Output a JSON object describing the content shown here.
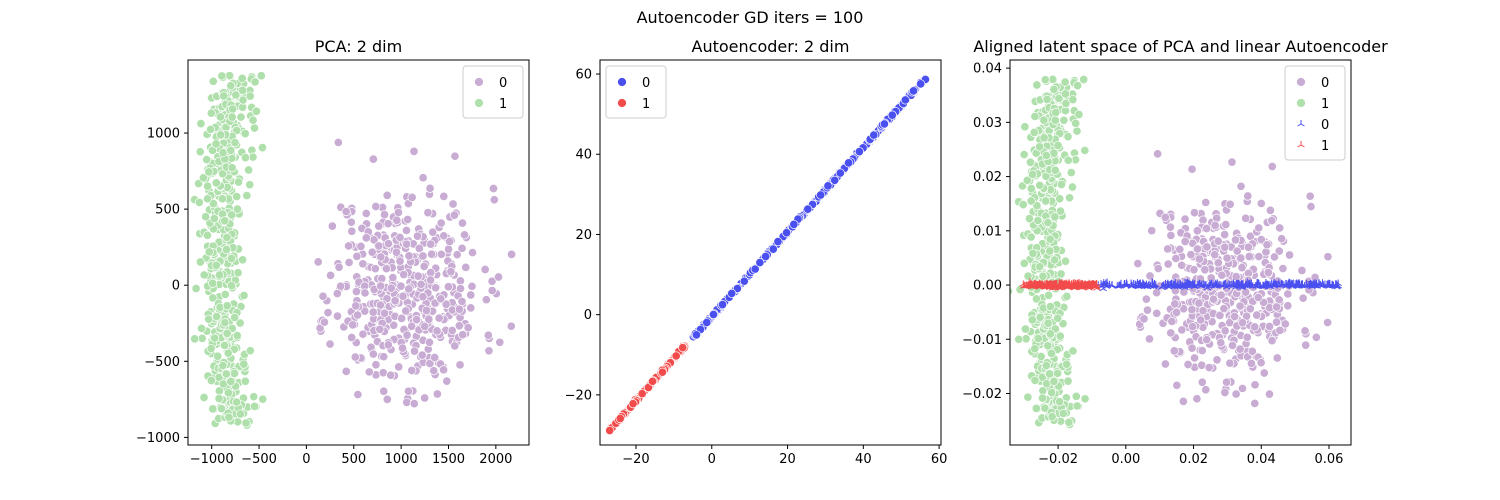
{
  "suptitle": "Autoencoder GD iters = 100",
  "colors": {
    "class0_pca": "#c9acd4",
    "class1_pca": "#afe0ac",
    "class0_ae": "#4a4ff0",
    "class1_ae": "#f24b4b"
  },
  "chart_data": [
    {
      "type": "scatter",
      "title": "PCA: 2 dim",
      "xlabel": "",
      "ylabel": "",
      "xlim": [
        -1250,
        2350
      ],
      "ylim": [
        -1050,
        1480
      ],
      "xticks": [
        -1000,
        -500,
        0,
        500,
        1000,
        1500,
        2000
      ],
      "yticks": [
        -1000,
        -500,
        0,
        500,
        1000
      ],
      "xtick_labels": [
        "−1000",
        "−500",
        "0",
        "500",
        "1000",
        "1500",
        "2000"
      ],
      "ytick_labels": [
        "−1000",
        "−500",
        "0",
        "500",
        "1000"
      ],
      "grid": false,
      "legend": {
        "placement": "top-right",
        "entries": [
          {
            "label": "0",
            "color": "#c9acd4",
            "marker": "circle"
          },
          {
            "label": "1",
            "color": "#afe0ac",
            "marker": "circle"
          }
        ]
      },
      "series": [
        {
          "name": "0",
          "color": "#c9acd4",
          "marker": "circle",
          "cloud": {
            "n": 480,
            "cx": 1050,
            "cy": -20,
            "sx": 400,
            "sy": 330,
            "xmin": 80,
            "xmax": 2280,
            "ymin": -780,
            "ymax": 1330,
            "seed": 11
          }
        },
        {
          "name": "1",
          "color": "#afe0ac",
          "marker": "circle",
          "shape": "crescent",
          "cloud": {
            "n": 520,
            "xcenter": -900,
            "xspread": 110,
            "ymin": -930,
            "ymax": 1380,
            "seed": 23
          }
        }
      ]
    },
    {
      "type": "scatter",
      "title": "Autoencoder: 2 dim",
      "xlabel": "",
      "ylabel": "",
      "xlim": [
        -29.5,
        60.5
      ],
      "ylim": [
        -32.5,
        63.5
      ],
      "xticks": [
        -20,
        0,
        20,
        40,
        60
      ],
      "yticks": [
        -20,
        0,
        20,
        40,
        60
      ],
      "xtick_labels": [
        "−20",
        "0",
        "20",
        "40",
        "60"
      ],
      "ytick_labels": [
        "−20",
        "0",
        "20",
        "40",
        "60"
      ],
      "grid": false,
      "legend": {
        "placement": "top-left",
        "entries": [
          {
            "label": "0",
            "color": "#4a4ff0",
            "marker": "circle"
          },
          {
            "label": "1",
            "color": "#f24b4b",
            "marker": "circle"
          }
        ]
      },
      "series": [
        {
          "name": "0",
          "color": "#4a4ff0",
          "marker": "circle",
          "line": {
            "x_from": -5,
            "x_to": 56.5,
            "slope": 1.0526,
            "intercept": -0.4,
            "n": 420,
            "seed": 5
          }
        },
        {
          "name": "1",
          "color": "#f24b4b",
          "marker": "circle",
          "line": {
            "x_from": -27,
            "x_to": -7,
            "slope": 1.0526,
            "intercept": -0.4,
            "n": 300,
            "seed": 7
          }
        }
      ]
    },
    {
      "type": "scatter",
      "title": "Aligned latent space of PCA and linear Autoencoder",
      "xlabel": "",
      "ylabel": "",
      "xlim": [
        -0.0342,
        0.0665
      ],
      "ylim": [
        -0.0295,
        0.0415
      ],
      "xticks": [
        -0.02,
        0.0,
        0.02,
        0.04,
        0.06
      ],
      "yticks": [
        -0.02,
        -0.01,
        0.0,
        0.01,
        0.02,
        0.03,
        0.04
      ],
      "xtick_labels": [
        "−0.02",
        "0.00",
        "0.02",
        "0.04",
        "0.06"
      ],
      "ytick_labels": [
        "−0.02",
        "−0.01",
        "0.00",
        "0.01",
        "0.02",
        "0.03",
        "0.04"
      ],
      "grid": false,
      "legend": {
        "placement": "top-right",
        "entries": [
          {
            "label": "0",
            "color": "#c9acd4",
            "marker": "circle"
          },
          {
            "label": "1",
            "color": "#afe0ac",
            "marker": "circle"
          },
          {
            "label": "0",
            "color": "#4a4ff0",
            "marker": "tri"
          },
          {
            "label": "1",
            "color": "#f24b4b",
            "marker": "tri"
          }
        ]
      },
      "series": [
        {
          "name": "0",
          "color": "#c9acd4",
          "marker": "circle",
          "cloud": {
            "n": 480,
            "cx": 0.029,
            "cy": -0.0005,
            "sx": 0.011,
            "sy": 0.0085,
            "xmin": 0.003,
            "xmax": 0.062,
            "ymin": -0.022,
            "ymax": 0.035,
            "seed": 11
          }
        },
        {
          "name": "1",
          "color": "#afe0ac",
          "marker": "circle",
          "shape": "crescent",
          "cloud": {
            "n": 520,
            "xcenter": -0.024,
            "xspread": 0.003,
            "ymin": -0.026,
            "ymax": 0.038,
            "seed": 23
          }
        },
        {
          "name": "0",
          "color": "#4a4ff0",
          "marker": "tri",
          "band": {
            "x_from": -0.009,
            "x_to": 0.063,
            "y": 0.0,
            "jitter": 0.0002,
            "n": 360,
            "seed": 31
          }
        },
        {
          "name": "1",
          "color": "#f24b4b",
          "marker": "tri",
          "band": {
            "x_from": -0.0305,
            "x_to": -0.0085,
            "y": -0.0001,
            "jitter": 0.0002,
            "n": 300,
            "seed": 37
          }
        }
      ]
    }
  ]
}
